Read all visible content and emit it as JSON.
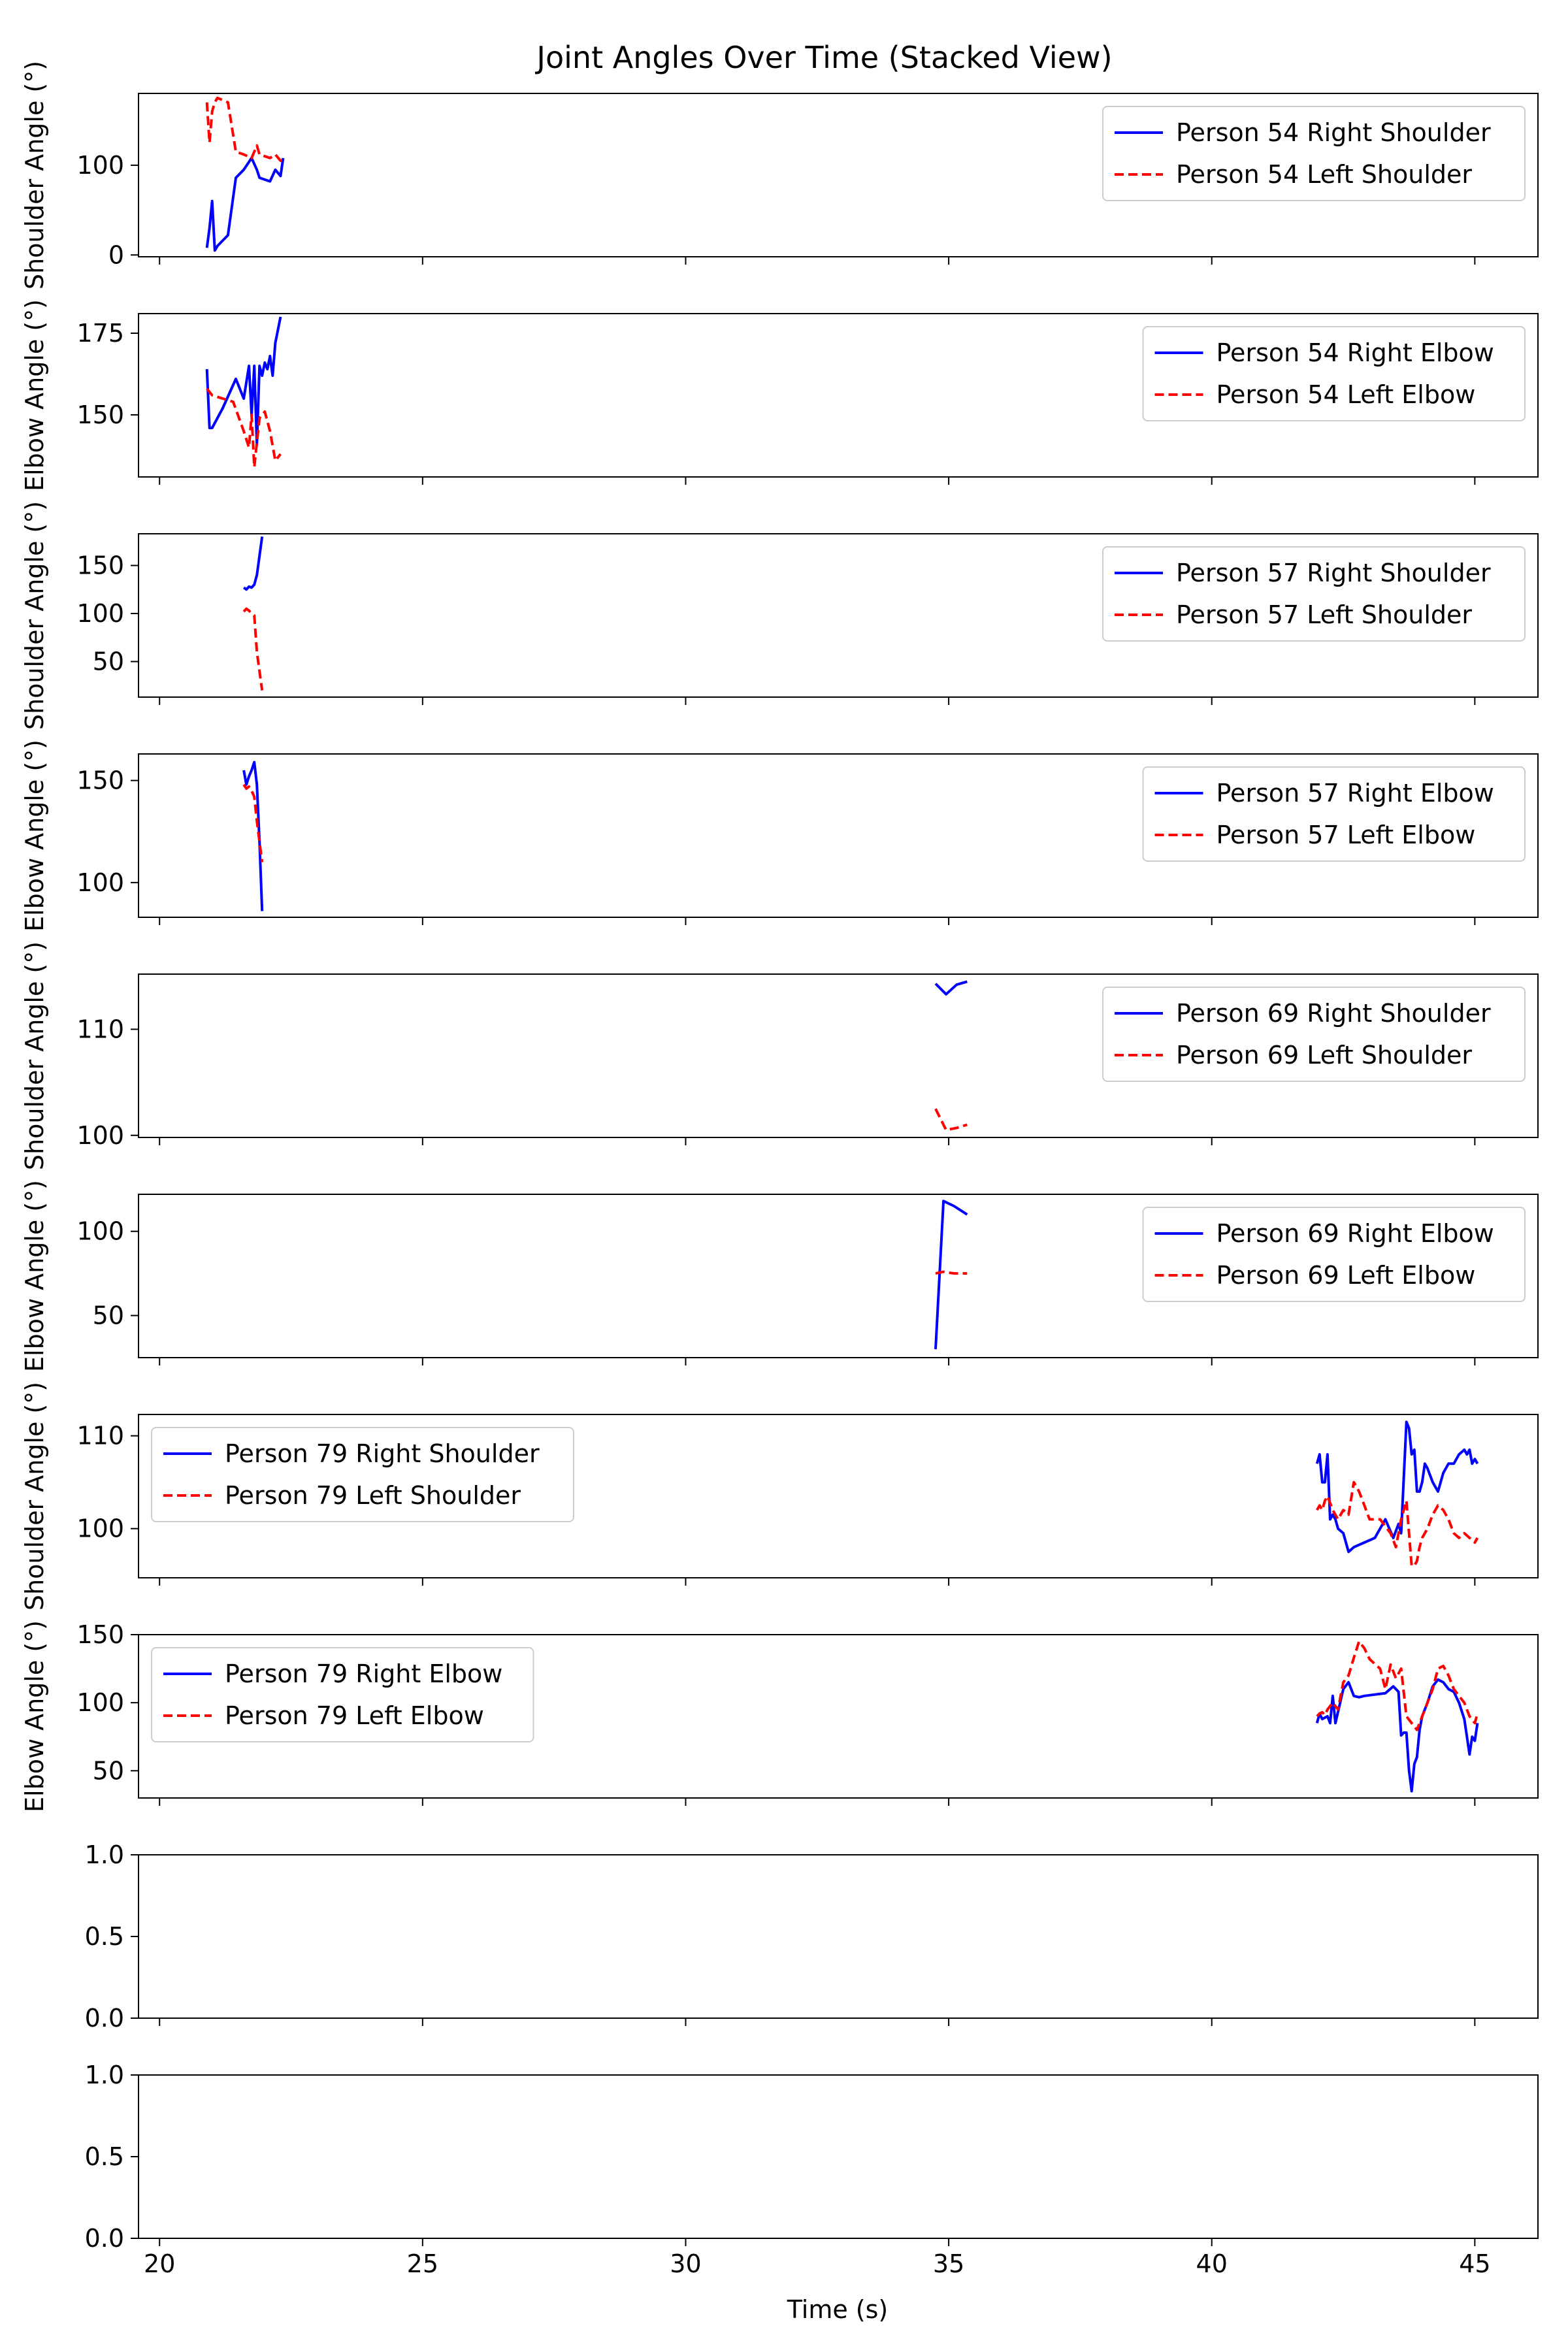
{
  "figure": {
    "title": "Joint Angles Over Time (Stacked View)",
    "xlabel": "Time (s)"
  },
  "chart_data": [
    {
      "type": "line",
      "ylabel": "Shoulder Angle (°)",
      "xlim": [
        19.6,
        46.2
      ],
      "ylim": [
        -2,
        180
      ],
      "yticks": [
        0,
        100
      ],
      "legend": "top-right",
      "series": [
        {
          "name": "Person 54 Right Shoulder",
          "color": "#0000ff",
          "dash": "solid",
          "x": [
            20.9,
            20.95,
            21.0,
            21.05,
            21.1,
            21.3,
            21.45,
            21.6,
            21.75,
            21.85,
            21.9,
            22.0,
            22.1,
            22.2,
            22.3,
            22.35
          ],
          "y": [
            8,
            30,
            60,
            5,
            10,
            22,
            86,
            95,
            108,
            95,
            86,
            84,
            82,
            95,
            88,
            108
          ]
        },
        {
          "name": "Person 54 Left Shoulder",
          "color": "#ff0000",
          "dash": "dashed",
          "x": [
            20.9,
            20.95,
            21.0,
            21.05,
            21.1,
            21.3,
            21.45,
            21.6,
            21.75,
            21.85,
            21.9,
            22.0,
            22.1,
            22.2,
            22.3,
            22.35
          ],
          "y": [
            170,
            125,
            160,
            170,
            175,
            170,
            115,
            112,
            108,
            122,
            112,
            110,
            108,
            112,
            105,
            108
          ]
        }
      ]
    },
    {
      "type": "line",
      "ylabel": "Elbow Angle (°)",
      "xlim": [
        19.6,
        46.2
      ],
      "ylim": [
        131,
        181
      ],
      "yticks": [
        150,
        175
      ],
      "legend": "top-right",
      "series": [
        {
          "name": "Person 54 Right Elbow",
          "color": "#0000ff",
          "dash": "solid",
          "x": [
            20.9,
            20.95,
            21.0,
            21.2,
            21.45,
            21.6,
            21.7,
            21.75,
            21.8,
            21.85,
            21.9,
            21.95,
            22.0,
            22.05,
            22.1,
            22.15,
            22.2,
            22.3
          ],
          "y": [
            164,
            146,
            146,
            152,
            161,
            155,
            165,
            150,
            165,
            141,
            165,
            162,
            166,
            164,
            168,
            162,
            172,
            180
          ]
        },
        {
          "name": "Person 54 Left Elbow",
          "color": "#ff0000",
          "dash": "dashed",
          "x": [
            20.9,
            21.0,
            21.2,
            21.4,
            21.6,
            21.7,
            21.75,
            21.8,
            21.9,
            22.0,
            22.1,
            22.2,
            22.3
          ],
          "y": [
            158,
            156,
            155,
            154,
            145,
            140,
            150,
            134,
            149,
            151,
            145,
            136,
            138
          ]
        }
      ]
    },
    {
      "type": "line",
      "ylabel": "Shoulder Angle (°)",
      "xlim": [
        19.6,
        46.2
      ],
      "ylim": [
        13,
        183
      ],
      "yticks": [
        50,
        100,
        150
      ],
      "legend": "top-right",
      "series": [
        {
          "name": "Person 57 Right Shoulder",
          "color": "#0000ff",
          "dash": "solid",
          "x": [
            21.6,
            21.65,
            21.7,
            21.75,
            21.8,
            21.85,
            21.9,
            21.95
          ],
          "y": [
            127,
            125,
            128,
            127,
            130,
            140,
            160,
            180
          ]
        },
        {
          "name": "Person 57 Left Shoulder",
          "color": "#ff0000",
          "dash": "dashed",
          "x": [
            21.6,
            21.65,
            21.7,
            21.75,
            21.8,
            21.85,
            21.9,
            21.95
          ],
          "y": [
            102,
            105,
            103,
            100,
            98,
            60,
            40,
            20
          ]
        }
      ]
    },
    {
      "type": "line",
      "ylabel": "Elbow Angle (°)",
      "xlim": [
        19.6,
        46.2
      ],
      "ylim": [
        83,
        163
      ],
      "yticks": [
        100,
        150
      ],
      "legend": "top-right",
      "series": [
        {
          "name": "Person 57 Right Elbow",
          "color": "#0000ff",
          "dash": "solid",
          "x": [
            21.6,
            21.65,
            21.7,
            21.75,
            21.8,
            21.85,
            21.9,
            21.95
          ],
          "y": [
            155,
            148,
            152,
            155,
            159,
            148,
            120,
            86
          ]
        },
        {
          "name": "Person 57 Left Elbow",
          "color": "#ff0000",
          "dash": "dashed",
          "x": [
            21.6,
            21.65,
            21.7,
            21.75,
            21.8,
            21.85,
            21.9,
            21.95
          ],
          "y": [
            148,
            146,
            147,
            145,
            142,
            130,
            120,
            110
          ]
        }
      ]
    },
    {
      "type": "line",
      "ylabel": "Shoulder Angle (°)",
      "xlim": [
        19.6,
        46.2
      ],
      "ylim": [
        99.8,
        115.2
      ],
      "yticks": [
        100,
        110
      ],
      "legend": "top-right",
      "series": [
        {
          "name": "Person 69 Right Shoulder",
          "color": "#0000ff",
          "dash": "solid",
          "x": [
            34.75,
            34.95,
            35.15,
            35.35
          ],
          "y": [
            114.3,
            113.3,
            114.2,
            114.5
          ]
        },
        {
          "name": "Person 69 Left Shoulder",
          "color": "#ff0000",
          "dash": "dashed",
          "x": [
            34.75,
            34.95,
            35.15,
            35.35
          ],
          "y": [
            102.5,
            100.5,
            100.7,
            101.0
          ]
        }
      ]
    },
    {
      "type": "line",
      "ylabel": "Elbow Angle (°)",
      "xlim": [
        19.6,
        46.2
      ],
      "ylim": [
        25,
        122
      ],
      "yticks": [
        50,
        100
      ],
      "legend": "top-right",
      "series": [
        {
          "name": "Person 69 Right Elbow",
          "color": "#0000ff",
          "dash": "solid",
          "x": [
            34.75,
            34.9,
            35.1,
            35.35
          ],
          "y": [
            30,
            118,
            115,
            110
          ]
        },
        {
          "name": "Person 69 Left Elbow",
          "color": "#ff0000",
          "dash": "dashed",
          "x": [
            34.75,
            34.9,
            35.1,
            35.35
          ],
          "y": [
            75,
            76,
            75,
            75
          ]
        }
      ]
    },
    {
      "type": "line",
      "ylabel": "Shoulder Angle (°)",
      "xlim": [
        19.6,
        46.2
      ],
      "ylim": [
        94.7,
        112.3
      ],
      "yticks": [
        100,
        110
      ],
      "legend": "top-left",
      "series": [
        {
          "name": "Person 79 Right Shoulder",
          "color": "#0000ff",
          "dash": "solid",
          "x": [
            42.0,
            42.05,
            42.1,
            42.15,
            42.2,
            42.25,
            42.3,
            42.35,
            42.4,
            42.5,
            42.6,
            42.7,
            42.9,
            43.1,
            43.3,
            43.45,
            43.55,
            43.6,
            43.7,
            43.75,
            43.8,
            43.85,
            43.9,
            43.95,
            44.0,
            44.05,
            44.1,
            44.2,
            44.3,
            44.4,
            44.5,
            44.6,
            44.7,
            44.8,
            44.85,
            44.9,
            44.95,
            45.0,
            45.05
          ],
          "y": [
            107.0,
            108.0,
            105.0,
            105.0,
            108.0,
            101.0,
            101.5,
            101.0,
            100.0,
            99.5,
            97.5,
            98.0,
            98.5,
            99.0,
            101.0,
            99.0,
            100.5,
            99.5,
            111.5,
            110.8,
            108.0,
            108.5,
            104.0,
            104.0,
            105.0,
            107.0,
            106.5,
            105.0,
            104.0,
            106.0,
            107.0,
            107.0,
            108.0,
            108.5,
            108.0,
            108.5,
            107.0,
            107.5,
            107.0
          ]
        },
        {
          "name": "Person 79 Left Shoulder",
          "color": "#ff0000",
          "dash": "dashed",
          "x": [
            42.0,
            42.05,
            42.1,
            42.15,
            42.2,
            42.3,
            42.4,
            42.5,
            42.6,
            42.7,
            42.8,
            42.9,
            43.0,
            43.2,
            43.4,
            43.5,
            43.6,
            43.7,
            43.8,
            43.85,
            43.9,
            43.95,
            44.0,
            44.1,
            44.2,
            44.3,
            44.4,
            44.5,
            44.6,
            44.7,
            44.8,
            44.9,
            45.0,
            45.05
          ],
          "y": [
            102.0,
            102.5,
            102.0,
            103.0,
            103.5,
            102.0,
            101.0,
            102.0,
            101.5,
            105.0,
            104.0,
            102.5,
            101.0,
            101.0,
            99.5,
            98.0,
            101.0,
            103.0,
            96.0,
            96.0,
            96.5,
            98.0,
            99.0,
            100.0,
            101.5,
            102.5,
            102.0,
            101.0,
            99.5,
            99.0,
            99.5,
            99.0,
            98.5,
            99.0
          ]
        }
      ]
    },
    {
      "type": "line",
      "ylabel": "Elbow Angle (°)",
      "xlim": [
        19.6,
        46.2
      ],
      "ylim": [
        30,
        150
      ],
      "yticks": [
        50,
        100,
        150
      ],
      "legend": "top-left",
      "series": [
        {
          "name": "Person 79 Right Elbow",
          "color": "#0000ff",
          "dash": "solid",
          "x": [
            42.0,
            42.05,
            42.1,
            42.2,
            42.25,
            42.3,
            42.35,
            42.5,
            42.6,
            42.7,
            42.8,
            42.9,
            43.1,
            43.3,
            43.45,
            43.55,
            43.6,
            43.65,
            43.7,
            43.75,
            43.8,
            43.85,
            43.9,
            43.95,
            44.0,
            44.1,
            44.2,
            44.3,
            44.4,
            44.5,
            44.6,
            44.7,
            44.8,
            44.9,
            44.95,
            45.0,
            45.05
          ],
          "y": [
            85,
            92,
            88,
            90,
            85,
            105,
            85,
            110,
            115,
            105,
            104,
            105,
            106,
            107,
            112,
            108,
            76,
            78,
            78,
            50,
            35,
            55,
            60,
            80,
            90,
            100,
            112,
            117,
            115,
            110,
            108,
            100,
            88,
            62,
            75,
            72,
            85
          ]
        },
        {
          "name": "Person 79 Left Elbow",
          "color": "#ff0000",
          "dash": "dashed",
          "x": [
            42.0,
            42.05,
            42.1,
            42.15,
            42.2,
            42.3,
            42.4,
            42.5,
            42.6,
            42.7,
            42.8,
            42.9,
            43.0,
            43.2,
            43.3,
            43.4,
            43.5,
            43.6,
            43.7,
            43.8,
            43.9,
            44.0,
            44.1,
            44.2,
            44.3,
            44.4,
            44.5,
            44.6,
            44.7,
            44.8,
            44.9,
            45.0,
            45.05
          ],
          "y": [
            90,
            92,
            93,
            91,
            95,
            100,
            95,
            115,
            120,
            133,
            145,
            140,
            132,
            125,
            110,
            128,
            118,
            125,
            90,
            85,
            80,
            90,
            100,
            110,
            125,
            127,
            120,
            110,
            105,
            100,
            90,
            85,
            92
          ]
        }
      ]
    },
    {
      "type": "line",
      "ylabel": "",
      "xlim": [
        19.6,
        46.2
      ],
      "ylim": [
        0,
        1
      ],
      "yticks": [
        0.0,
        0.5,
        1.0
      ],
      "legend": "",
      "series": []
    },
    {
      "type": "line",
      "ylabel": "",
      "xlim": [
        19.6,
        46.2
      ],
      "ylim": [
        0,
        1
      ],
      "yticks": [
        0.0,
        0.5,
        1.0
      ],
      "legend": "",
      "series": []
    }
  ]
}
